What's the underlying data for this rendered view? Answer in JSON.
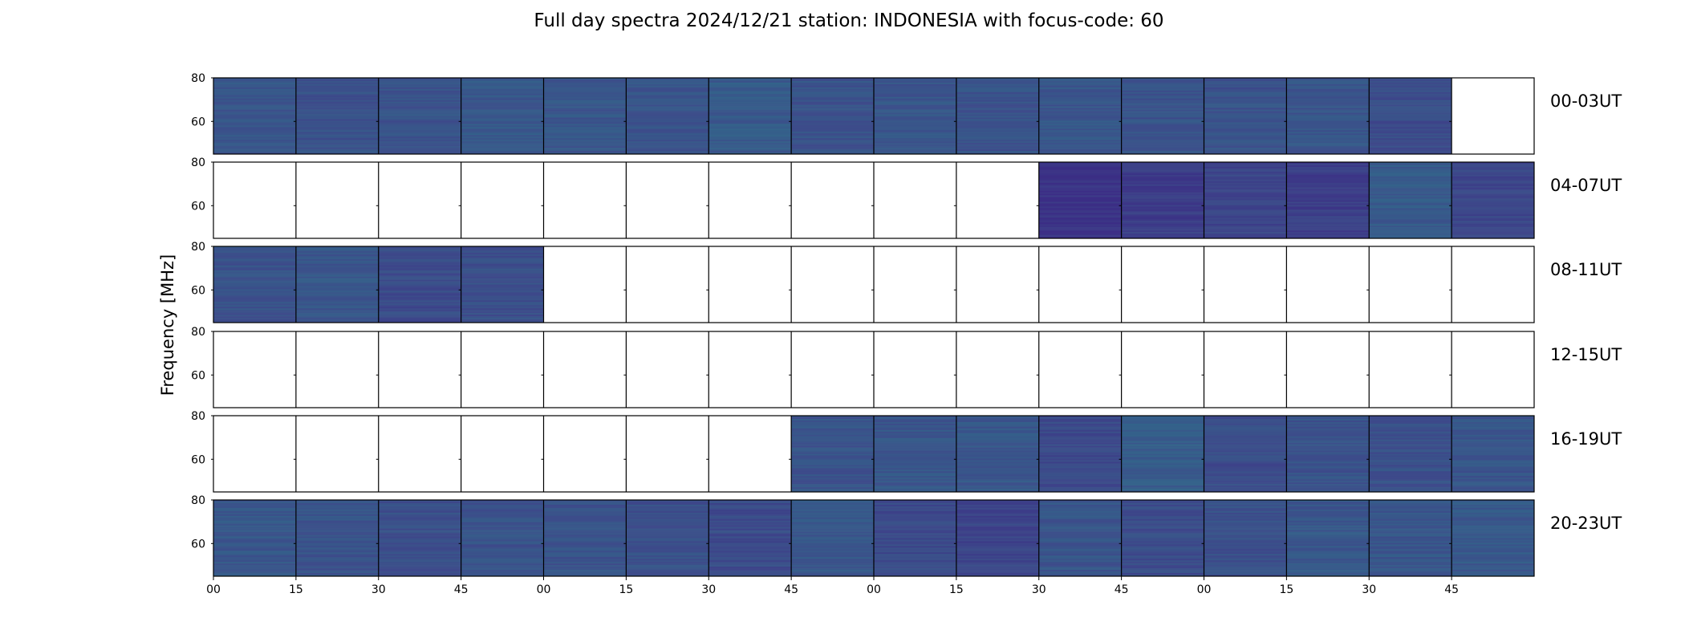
{
  "chart_data": {
    "type": "heatmap",
    "title": "Full day spectra 2024/12/21 station: INDONESIA with focus-code: 60",
    "ylabel": "Frequency [MHz]",
    "yticks": [
      "80",
      "60"
    ],
    "ylim": [
      45,
      80
    ],
    "xticks": [
      "00",
      "15",
      "30",
      "45",
      "00",
      "15",
      "30",
      "45",
      "00",
      "15",
      "30",
      "45",
      "00",
      "15",
      "30",
      "45"
    ],
    "minutes_per_panel": 15,
    "panels_per_row": 16,
    "grid": false,
    "colormap": [
      "#3b2d85",
      "#3d4a8a",
      "#33648a",
      "#2a788e",
      "#21908d"
    ],
    "rows": [
      {
        "label": "00-03UT",
        "filled": [
          1,
          1,
          1,
          1,
          1,
          1,
          1,
          1,
          1,
          1,
          1,
          1,
          1,
          1,
          1,
          0
        ],
        "tone": [
          0.35,
          0.32,
          0.33,
          0.38,
          0.36,
          0.34,
          0.4,
          0.33,
          0.36,
          0.33,
          0.37,
          0.33,
          0.32,
          0.35,
          0.28,
          0
        ]
      },
      {
        "label": "04-07UT",
        "filled": [
          0,
          0,
          0,
          0,
          0,
          0,
          0,
          0,
          0,
          0,
          1,
          1,
          1,
          1,
          1,
          1
        ],
        "tone": [
          0,
          0,
          0,
          0,
          0,
          0,
          0,
          0,
          0,
          0,
          0.05,
          0.14,
          0.2,
          0.15,
          0.4,
          0.22
        ]
      },
      {
        "label": "08-11UT",
        "filled": [
          1,
          1,
          1,
          1,
          0,
          0,
          0,
          0,
          0,
          0,
          0,
          0,
          0,
          0,
          0,
          0
        ],
        "tone": [
          0.33,
          0.36,
          0.26,
          0.3,
          0,
          0,
          0,
          0,
          0,
          0,
          0,
          0,
          0,
          0,
          0,
          0
        ]
      },
      {
        "label": "12-15UT",
        "filled": [
          0,
          0,
          0,
          0,
          0,
          0,
          0,
          0,
          0,
          0,
          0,
          0,
          0,
          0,
          0,
          0
        ],
        "tone": [
          0,
          0,
          0,
          0,
          0,
          0,
          0,
          0,
          0,
          0,
          0,
          0,
          0,
          0,
          0,
          0
        ]
      },
      {
        "label": "16-19UT",
        "filled": [
          0,
          0,
          0,
          0,
          0,
          0,
          0,
          1,
          1,
          1,
          1,
          1,
          1,
          1,
          1,
          1
        ],
        "tone": [
          0,
          0,
          0,
          0,
          0,
          0,
          0,
          0.34,
          0.37,
          0.36,
          0.25,
          0.42,
          0.28,
          0.33,
          0.31,
          0.35
        ]
      },
      {
        "label": "20-23UT",
        "filled": [
          1,
          1,
          1,
          1,
          1,
          1,
          1,
          1,
          1,
          1,
          1,
          1,
          1,
          1,
          1,
          1
        ],
        "tone": [
          0.38,
          0.33,
          0.3,
          0.33,
          0.33,
          0.31,
          0.26,
          0.38,
          0.25,
          0.2,
          0.35,
          0.27,
          0.31,
          0.37,
          0.36,
          0.38
        ]
      }
    ]
  }
}
